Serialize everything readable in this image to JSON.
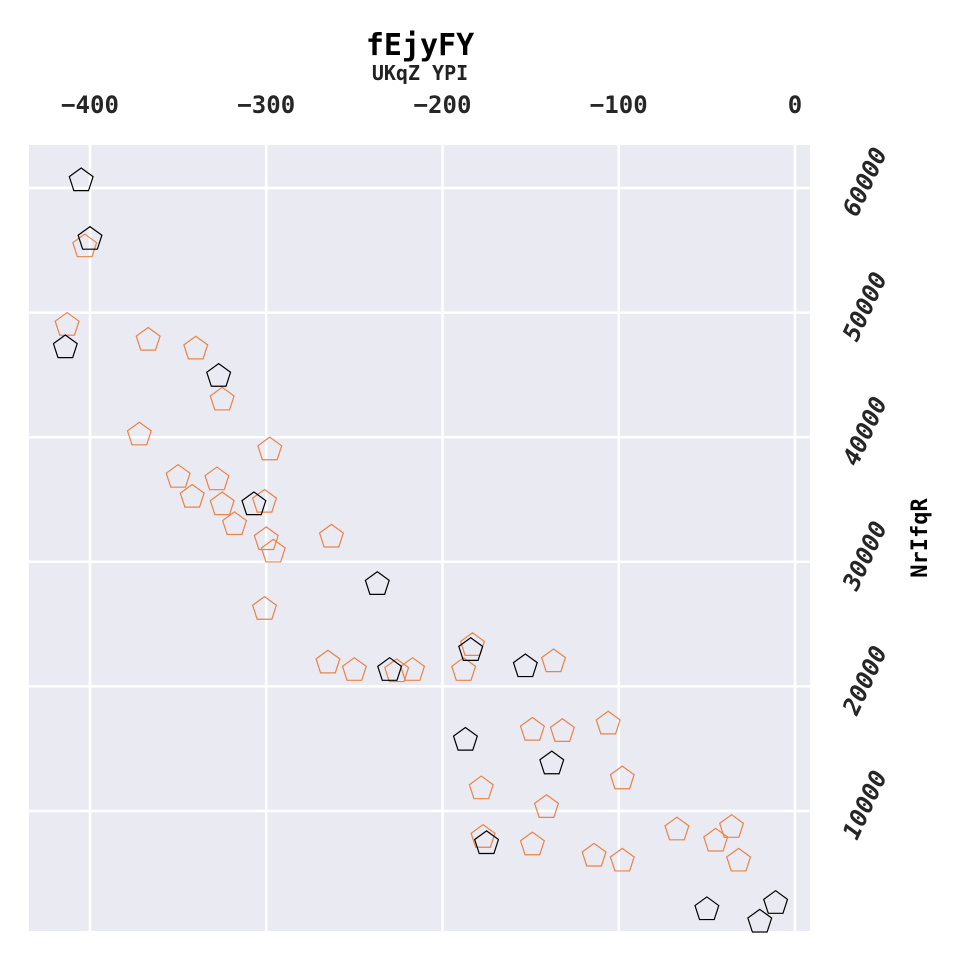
{
  "chart_data": {
    "type": "scatter",
    "title": "fEjyFY",
    "subtitle": "UKqZ YPI",
    "xlabel": "",
    "ylabel": "NrIfqR",
    "xlim": [
      -435,
      9
    ],
    "ylim": [
      -3000,
      60000
    ],
    "x_axis_position": "top",
    "y_axis_position": "right",
    "x_ticks": [
      -400,
      -300,
      -200,
      -100,
      0
    ],
    "x_tick_labels": [
      "−400",
      "−300",
      "−200",
      "−100",
      "0"
    ],
    "y_ticks": [
      10000,
      20000,
      30000,
      40000,
      50000,
      60000
    ],
    "y_tick_labels": [
      "10000",
      "20000",
      "30000",
      "40000",
      "50000",
      "60000"
    ],
    "grid": true,
    "background_color": "#eaeaf2",
    "grid_color": "#ffffff",
    "marker": "pentagon",
    "series": [
      {
        "color": "#000000",
        "points": [
          [
            -405,
            60600
          ],
          [
            -400,
            55900
          ],
          [
            -414,
            47200
          ],
          [
            -327,
            44900
          ],
          [
            -307,
            34600
          ],
          [
            -237,
            28200
          ],
          [
            -230,
            21300
          ],
          [
            -184,
            22900
          ],
          [
            -153,
            21600
          ],
          [
            -187,
            15700
          ],
          [
            -138,
            13800
          ],
          [
            -175,
            7400
          ],
          [
            -50,
            2100
          ],
          [
            -11,
            2600
          ],
          [
            -20,
            1100
          ]
        ]
      },
      {
        "color": "#e8834a",
        "points": [
          [
            -403,
            55300
          ],
          [
            -413,
            49000
          ],
          [
            -367,
            47800
          ],
          [
            -340,
            47100
          ],
          [
            -325,
            43000
          ],
          [
            -372,
            40200
          ],
          [
            -350,
            36800
          ],
          [
            -342,
            35200
          ],
          [
            -328,
            36600
          ],
          [
            -325,
            34600
          ],
          [
            -318,
            33000
          ],
          [
            -300,
            31800
          ],
          [
            -296,
            30800
          ],
          [
            -301,
            34800
          ],
          [
            -298,
            39000
          ],
          [
            -263,
            32000
          ],
          [
            -301,
            26200
          ],
          [
            -265,
            21900
          ],
          [
            -250,
            21300
          ],
          [
            -226,
            21200
          ],
          [
            -217,
            21300
          ],
          [
            -183,
            23300
          ],
          [
            -188,
            21300
          ],
          [
            -137,
            22000
          ],
          [
            -149,
            16500
          ],
          [
            -132,
            16400
          ],
          [
            -106,
            17000
          ],
          [
            -98,
            12600
          ],
          [
            -178,
            11800
          ],
          [
            -141,
            10300
          ],
          [
            -177,
            7900
          ],
          [
            -149,
            7300
          ],
          [
            -114,
            6400
          ],
          [
            -98,
            6000
          ],
          [
            -67,
            8500
          ],
          [
            -36,
            8700
          ],
          [
            -45,
            7600
          ],
          [
            -32,
            6000
          ]
        ]
      }
    ]
  }
}
